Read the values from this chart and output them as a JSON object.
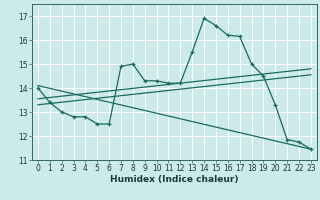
{
  "xlabel": "Humidex (Indice chaleur)",
  "bg_color": "#cceaea",
  "line_color": "#1a6b5e",
  "grid_color": "#b0d8d8",
  "xlim": [
    -0.5,
    23.5
  ],
  "ylim": [
    11,
    17.5
  ],
  "yticks": [
    11,
    12,
    13,
    14,
    15,
    16,
    17
  ],
  "xticks": [
    0,
    1,
    2,
    3,
    4,
    5,
    6,
    7,
    8,
    9,
    10,
    11,
    12,
    13,
    14,
    15,
    16,
    17,
    18,
    19,
    20,
    21,
    22,
    23
  ],
  "series1_x": [
    0,
    1,
    2,
    3,
    4,
    5,
    6,
    7,
    8,
    9,
    10,
    11,
    12,
    13,
    14,
    15,
    16,
    17,
    18,
    19,
    20,
    21,
    22,
    23
  ],
  "series1_y": [
    14.0,
    13.4,
    13.0,
    12.8,
    12.8,
    12.5,
    12.5,
    14.9,
    15.0,
    14.3,
    14.3,
    14.2,
    14.2,
    15.5,
    16.9,
    16.6,
    16.2,
    16.15,
    15.0,
    14.5,
    13.3,
    11.85,
    11.75,
    11.45
  ],
  "series2_x": [
    0,
    23
  ],
  "series2_y": [
    13.55,
    14.8
  ],
  "series3_x": [
    0,
    23
  ],
  "series3_y": [
    13.3,
    14.55
  ],
  "series4_x": [
    0,
    23
  ],
  "series4_y": [
    14.1,
    11.45
  ]
}
